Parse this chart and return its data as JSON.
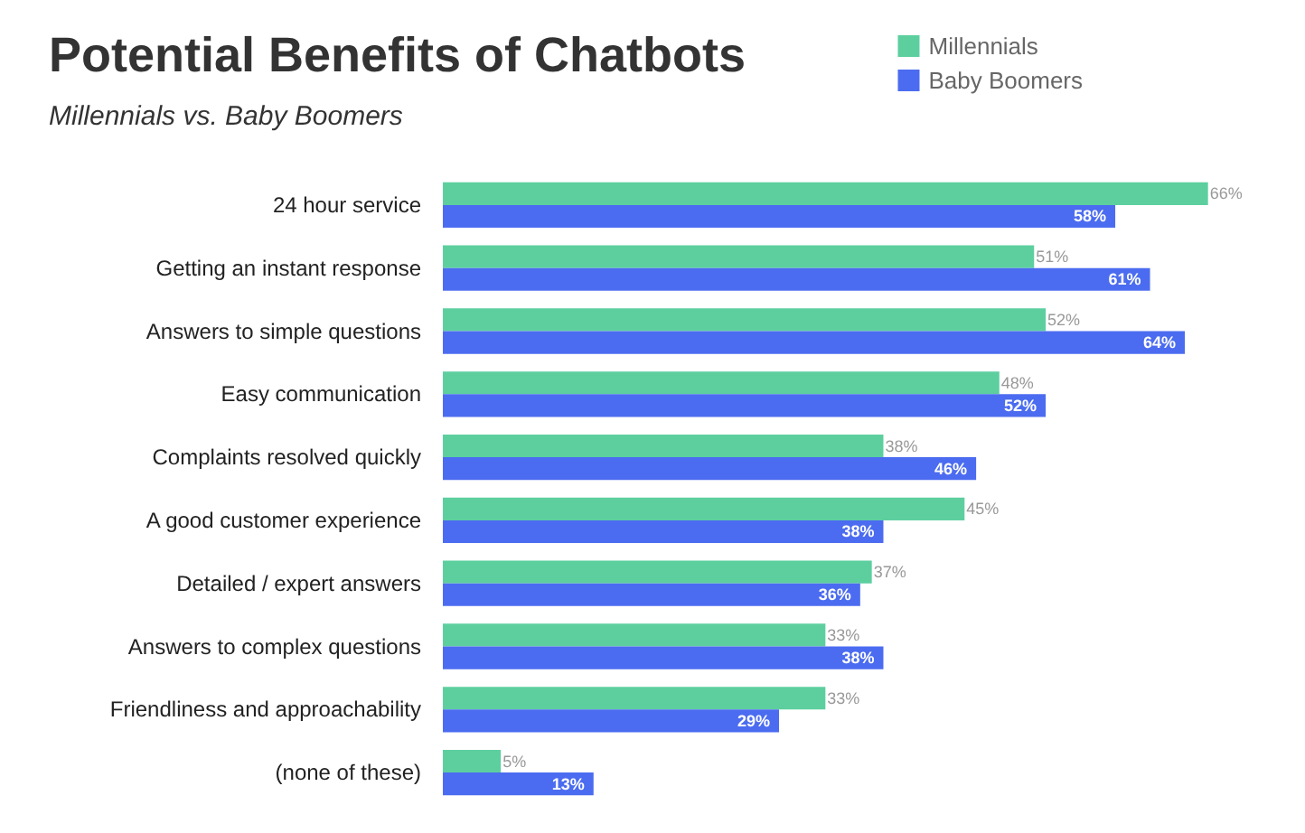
{
  "chart_data": {
    "type": "bar",
    "orientation": "horizontal",
    "title": "Potential Benefits of Chatbots",
    "subtitle": "Millennials vs. Baby Boomers",
    "categories": [
      "24 hour service",
      "Getting an instant response",
      "Answers to simple questions",
      "Easy communication",
      "Complaints resolved quickly",
      "A good customer experience",
      "Detailed / expert answers",
      "Answers to complex questions",
      "Friendliness and approachability",
      "(none of these)"
    ],
    "tick_labels": "y",
    "series": [
      {
        "name": "Millennials",
        "color": "#5dcf9f",
        "values": [
          66,
          51,
          52,
          48,
          38,
          45,
          37,
          33,
          33,
          5
        ],
        "value_labels": [
          "66%",
          "51%",
          "52%",
          "48%",
          "38%",
          "45%",
          "37%",
          "33%",
          "33%",
          "5%"
        ]
      },
      {
        "name": "Baby Boomers",
        "color": "#4b6cf0",
        "values": [
          58,
          61,
          64,
          52,
          46,
          38,
          36,
          38,
          29,
          13
        ],
        "value_labels": [
          "58%",
          "61%",
          "64%",
          "52%",
          "46%",
          "38%",
          "36%",
          "38%",
          "29%",
          "13%"
        ]
      }
    ],
    "legend": "top right"
  }
}
